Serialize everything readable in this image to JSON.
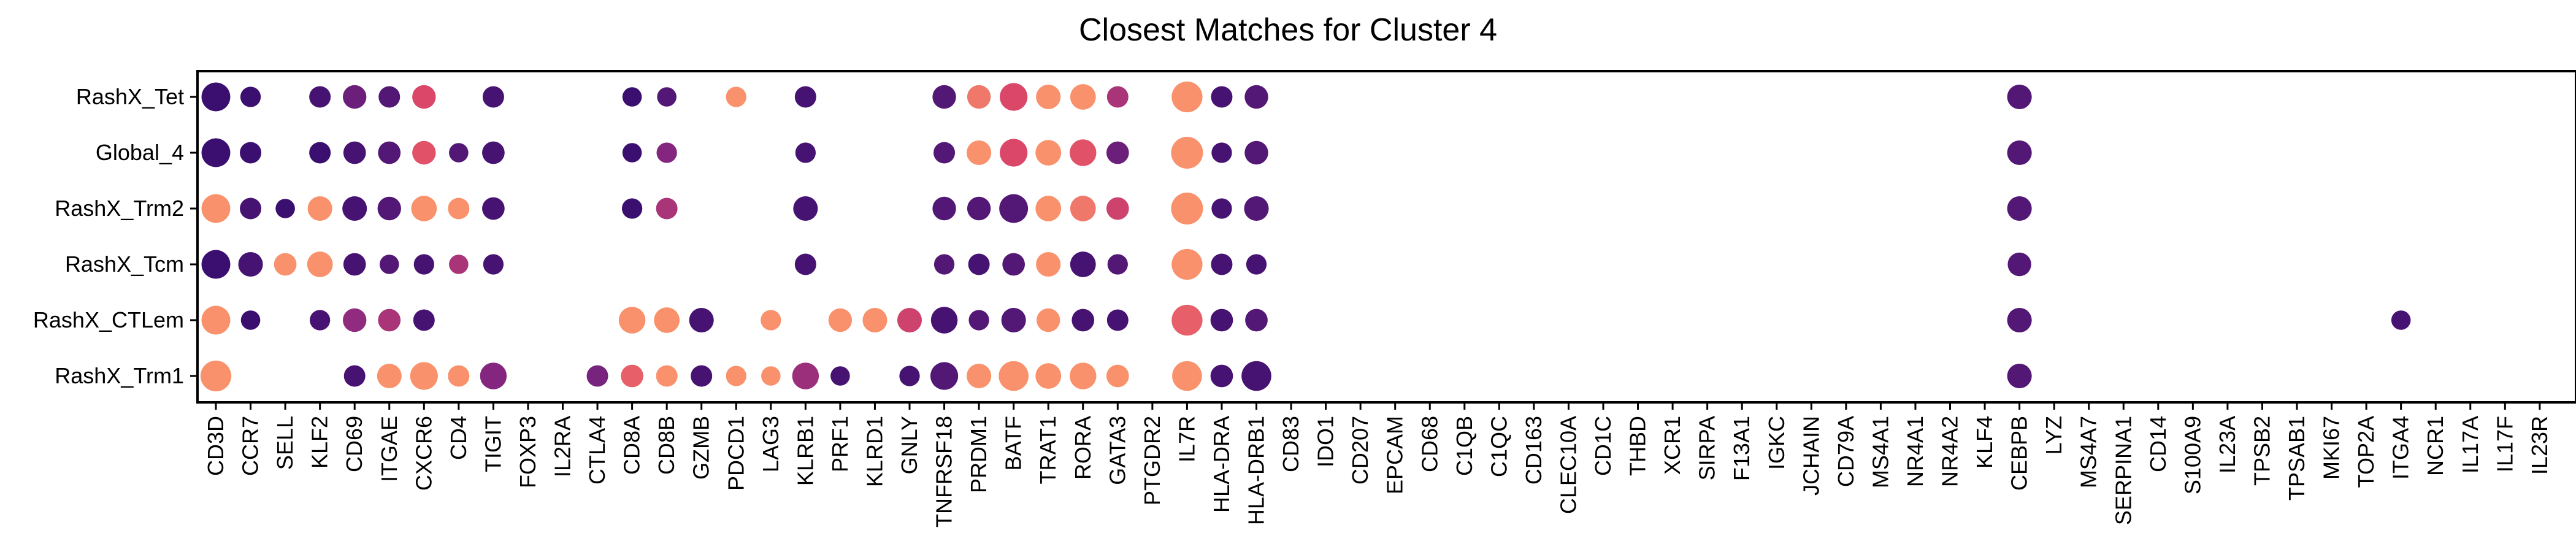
{
  "chart_data": {
    "type": "dot",
    "title": "Closest Matches for Cluster 4",
    "xlabel": "",
    "ylabel": "",
    "grid": false,
    "legend": "none",
    "color_scale": [
      "#3b0f70",
      "#8c2981",
      "#de4968",
      "#fe9f6d"
    ],
    "genes": [
      "CD3D",
      "CCR7",
      "SELL",
      "KLF2",
      "CD69",
      "ITGAE",
      "CXCR6",
      "CD4",
      "TIGIT",
      "FOXP3",
      "IL2RA",
      "CTLA4",
      "CD8A",
      "CD8B",
      "GZMB",
      "PDCD1",
      "LAG3",
      "KLRB1",
      "PRF1",
      "KLRD1",
      "GNLY",
      "TNFRSF18",
      "PRDM1",
      "BATF",
      "TRAT1",
      "RORA",
      "GATA3",
      "PTGDR2",
      "IL7R",
      "HLA-DRA",
      "HLA-DRB1",
      "CD83",
      "IDO1",
      "CD207",
      "EPCAM",
      "CD68",
      "C1QB",
      "C1QC",
      "CD163",
      "CLEC10A",
      "CD1C",
      "THBD",
      "XCR1",
      "SIRPA",
      "F13A1",
      "IGKC",
      "JCHAIN",
      "CD79A",
      "MS4A1",
      "NR4A1",
      "NR4A2",
      "KLF4",
      "CEBPB",
      "LYZ",
      "MS4A7",
      "SERPINA1",
      "CD14",
      "S100A9",
      "IL23A",
      "TPSB2",
      "TPSAB1",
      "MKI67",
      "TOP2A",
      "ITGA4",
      "NCR1",
      "IL17A",
      "IL17F",
      "IL23R"
    ],
    "groups": [
      "RashX_Tet",
      "Global_4",
      "RashX_Trm2",
      "RashX_Tcm",
      "RashX_CTLem",
      "RashX_Trm1"
    ],
    "points": [
      {
        "group": "RashX_Tet",
        "gene": "CD3D",
        "size": 0.85,
        "color": 0.0
      },
      {
        "group": "RashX_Tet",
        "gene": "CCR7",
        "size": 0.45,
        "color": 0.0
      },
      {
        "group": "RashX_Tet",
        "gene": "KLF2",
        "size": 0.5,
        "color": 0.05
      },
      {
        "group": "RashX_Tet",
        "gene": "CD69",
        "size": 0.6,
        "color": 0.2
      },
      {
        "group": "RashX_Tet",
        "gene": "ITGAE",
        "size": 0.5,
        "color": 0.1
      },
      {
        "group": "RashX_Tet",
        "gene": "CXCR6",
        "size": 0.6,
        "color": 0.65
      },
      {
        "group": "RashX_Tet",
        "gene": "TIGIT",
        "size": 0.5,
        "color": 0.05
      },
      {
        "group": "RashX_Tet",
        "gene": "CD8A",
        "size": 0.4,
        "color": 0.0
      },
      {
        "group": "RashX_Tet",
        "gene": "CD8B",
        "size": 0.4,
        "color": 0.1
      },
      {
        "group": "RashX_Tet",
        "gene": "PDCD1",
        "size": 0.45,
        "color": 0.95
      },
      {
        "group": "RashX_Tet",
        "gene": "KLRB1",
        "size": 0.5,
        "color": 0.05
      },
      {
        "group": "RashX_Tet",
        "gene": "TNFRSF18",
        "size": 0.6,
        "color": 0.1
      },
      {
        "group": "RashX_Tet",
        "gene": "PRDM1",
        "size": 0.6,
        "color": 0.85
      },
      {
        "group": "RashX_Tet",
        "gene": "BATF",
        "size": 0.8,
        "color": 0.65
      },
      {
        "group": "RashX_Tet",
        "gene": "TRAT1",
        "size": 0.65,
        "color": 0.95
      },
      {
        "group": "RashX_Tet",
        "gene": "RORA",
        "size": 0.7,
        "color": 0.95
      },
      {
        "group": "RashX_Tet",
        "gene": "GATA3",
        "size": 0.5,
        "color": 0.45
      },
      {
        "group": "RashX_Tet",
        "gene": "IL7R",
        "size": 0.95,
        "color": 0.95
      },
      {
        "group": "RashX_Tet",
        "gene": "HLA-DRA",
        "size": 0.5,
        "color": 0.05
      },
      {
        "group": "RashX_Tet",
        "gene": "HLA-DRB1",
        "size": 0.6,
        "color": 0.1
      },
      {
        "group": "RashX_Tet",
        "gene": "CEBPB",
        "size": 0.65,
        "color": 0.1
      },
      {
        "group": "Global_4",
        "gene": "CD3D",
        "size": 0.85,
        "color": 0.0
      },
      {
        "group": "Global_4",
        "gene": "CCR7",
        "size": 0.5,
        "color": 0.0
      },
      {
        "group": "Global_4",
        "gene": "KLF2",
        "size": 0.5,
        "color": 0.0
      },
      {
        "group": "Global_4",
        "gene": "CD69",
        "size": 0.55,
        "color": 0.05
      },
      {
        "group": "Global_4",
        "gene": "ITGAE",
        "size": 0.55,
        "color": 0.1
      },
      {
        "group": "Global_4",
        "gene": "CXCR6",
        "size": 0.6,
        "color": 0.7
      },
      {
        "group": "Global_4",
        "gene": "CD4",
        "size": 0.4,
        "color": 0.1
      },
      {
        "group": "Global_4",
        "gene": "TIGIT",
        "size": 0.55,
        "color": 0.05
      },
      {
        "group": "Global_4",
        "gene": "CD8A",
        "size": 0.4,
        "color": 0.0
      },
      {
        "group": "Global_4",
        "gene": "CD8B",
        "size": 0.45,
        "color": 0.3
      },
      {
        "group": "Global_4",
        "gene": "KLRB1",
        "size": 0.45,
        "color": 0.05
      },
      {
        "group": "Global_4",
        "gene": "TNFRSF18",
        "size": 0.5,
        "color": 0.1
      },
      {
        "group": "Global_4",
        "gene": "PRDM1",
        "size": 0.65,
        "color": 0.95
      },
      {
        "group": "Global_4",
        "gene": "BATF",
        "size": 0.8,
        "color": 0.65
      },
      {
        "group": "Global_4",
        "gene": "TRAT1",
        "size": 0.7,
        "color": 0.95
      },
      {
        "group": "Global_4",
        "gene": "RORA",
        "size": 0.75,
        "color": 0.7
      },
      {
        "group": "Global_4",
        "gene": "GATA3",
        "size": 0.55,
        "color": 0.2
      },
      {
        "group": "Global_4",
        "gene": "IL7R",
        "size": 1.0,
        "color": 0.95
      },
      {
        "group": "Global_4",
        "gene": "HLA-DRA",
        "size": 0.45,
        "color": 0.05
      },
      {
        "group": "Global_4",
        "gene": "HLA-DRB1",
        "size": 0.6,
        "color": 0.1
      },
      {
        "group": "Global_4",
        "gene": "CEBPB",
        "size": 0.65,
        "color": 0.1
      },
      {
        "group": "RashX_Trm2",
        "gene": "CD3D",
        "size": 0.85,
        "color": 0.95
      },
      {
        "group": "RashX_Trm2",
        "gene": "CCR7",
        "size": 0.5,
        "color": 0.05
      },
      {
        "group": "RashX_Trm2",
        "gene": "SELL",
        "size": 0.4,
        "color": 0.0
      },
      {
        "group": "RashX_Trm2",
        "gene": "KLF2",
        "size": 0.65,
        "color": 0.95
      },
      {
        "group": "RashX_Trm2",
        "gene": "CD69",
        "size": 0.65,
        "color": 0.05
      },
      {
        "group": "RashX_Trm2",
        "gene": "ITGAE",
        "size": 0.6,
        "color": 0.1
      },
      {
        "group": "RashX_Trm2",
        "gene": "CXCR6",
        "size": 0.7,
        "color": 0.95
      },
      {
        "group": "RashX_Trm2",
        "gene": "CD4",
        "size": 0.5,
        "color": 0.95
      },
      {
        "group": "RashX_Trm2",
        "gene": "TIGIT",
        "size": 0.55,
        "color": 0.05
      },
      {
        "group": "RashX_Trm2",
        "gene": "CD8A",
        "size": 0.45,
        "color": 0.0
      },
      {
        "group": "RashX_Trm2",
        "gene": "CD8B",
        "size": 0.5,
        "color": 0.45
      },
      {
        "group": "RashX_Trm2",
        "gene": "KLRB1",
        "size": 0.65,
        "color": 0.05
      },
      {
        "group": "RashX_Trm2",
        "gene": "TNFRSF18",
        "size": 0.6,
        "color": 0.1
      },
      {
        "group": "RashX_Trm2",
        "gene": "PRDM1",
        "size": 0.6,
        "color": 0.1
      },
      {
        "group": "RashX_Trm2",
        "gene": "BATF",
        "size": 0.85,
        "color": 0.1
      },
      {
        "group": "RashX_Trm2",
        "gene": "TRAT1",
        "size": 0.7,
        "color": 0.95
      },
      {
        "group": "RashX_Trm2",
        "gene": "RORA",
        "size": 0.7,
        "color": 0.85
      },
      {
        "group": "RashX_Trm2",
        "gene": "GATA3",
        "size": 0.55,
        "color": 0.6
      },
      {
        "group": "RashX_Trm2",
        "gene": "IL7R",
        "size": 1.0,
        "color": 0.95
      },
      {
        "group": "RashX_Trm2",
        "gene": "HLA-DRA",
        "size": 0.45,
        "color": 0.05
      },
      {
        "group": "RashX_Trm2",
        "gene": "HLA-DRB1",
        "size": 0.65,
        "color": 0.1
      },
      {
        "group": "RashX_Trm2",
        "gene": "CEBPB",
        "size": 0.65,
        "color": 0.1
      },
      {
        "group": "RashX_Tcm",
        "gene": "CD3D",
        "size": 0.85,
        "color": 0.0
      },
      {
        "group": "RashX_Tcm",
        "gene": "CCR7",
        "size": 0.65,
        "color": 0.05
      },
      {
        "group": "RashX_Tcm",
        "gene": "SELL",
        "size": 0.55,
        "color": 0.95
      },
      {
        "group": "RashX_Tcm",
        "gene": "KLF2",
        "size": 0.7,
        "color": 0.95
      },
      {
        "group": "RashX_Tcm",
        "gene": "CD69",
        "size": 0.55,
        "color": 0.05
      },
      {
        "group": "RashX_Tcm",
        "gene": "ITGAE",
        "size": 0.4,
        "color": 0.1
      },
      {
        "group": "RashX_Tcm",
        "gene": "CXCR6",
        "size": 0.45,
        "color": 0.05
      },
      {
        "group": "RashX_Tcm",
        "gene": "CD4",
        "size": 0.4,
        "color": 0.45
      },
      {
        "group": "RashX_Tcm",
        "gene": "TIGIT",
        "size": 0.45,
        "color": 0.05
      },
      {
        "group": "RashX_Tcm",
        "gene": "KLRB1",
        "size": 0.5,
        "color": 0.05
      },
      {
        "group": "RashX_Tcm",
        "gene": "TNFRSF18",
        "size": 0.45,
        "color": 0.1
      },
      {
        "group": "RashX_Tcm",
        "gene": "PRDM1",
        "size": 0.5,
        "color": 0.05
      },
      {
        "group": "RashX_Tcm",
        "gene": "BATF",
        "size": 0.55,
        "color": 0.1
      },
      {
        "group": "RashX_Tcm",
        "gene": "TRAT1",
        "size": 0.65,
        "color": 0.95
      },
      {
        "group": "RashX_Tcm",
        "gene": "RORA",
        "size": 0.7,
        "color": 0.05
      },
      {
        "group": "RashX_Tcm",
        "gene": "GATA3",
        "size": 0.45,
        "color": 0.1
      },
      {
        "group": "RashX_Tcm",
        "gene": "IL7R",
        "size": 0.95,
        "color": 0.95
      },
      {
        "group": "RashX_Tcm",
        "gene": "HLA-DRA",
        "size": 0.5,
        "color": 0.05
      },
      {
        "group": "RashX_Tcm",
        "gene": "HLA-DRB1",
        "size": 0.45,
        "color": 0.05
      },
      {
        "group": "RashX_Tcm",
        "gene": "CEBPB",
        "size": 0.6,
        "color": 0.1
      },
      {
        "group": "RashX_CTLem",
        "gene": "CD3D",
        "size": 0.85,
        "color": 0.95
      },
      {
        "group": "RashX_CTLem",
        "gene": "CCR7",
        "size": 0.4,
        "color": 0.0
      },
      {
        "group": "RashX_CTLem",
        "gene": "KLF2",
        "size": 0.45,
        "color": 0.05
      },
      {
        "group": "RashX_CTLem",
        "gene": "CD69",
        "size": 0.6,
        "color": 0.35
      },
      {
        "group": "RashX_CTLem",
        "gene": "ITGAE",
        "size": 0.55,
        "color": 0.45
      },
      {
        "group": "RashX_CTLem",
        "gene": "CXCR6",
        "size": 0.5,
        "color": 0.05
      },
      {
        "group": "RashX_CTLem",
        "gene": "CD8A",
        "size": 0.75,
        "color": 0.95
      },
      {
        "group": "RashX_CTLem",
        "gene": "CD8B",
        "size": 0.7,
        "color": 0.95
      },
      {
        "group": "RashX_CTLem",
        "gene": "GZMB",
        "size": 0.65,
        "color": 0.05
      },
      {
        "group": "RashX_CTLem",
        "gene": "LAG3",
        "size": 0.45,
        "color": 0.95
      },
      {
        "group": "RashX_CTLem",
        "gene": "PRF1",
        "size": 0.6,
        "color": 0.95
      },
      {
        "group": "RashX_CTLem",
        "gene": "KLRD1",
        "size": 0.65,
        "color": 0.95
      },
      {
        "group": "RashX_CTLem",
        "gene": "GNLY",
        "size": 0.65,
        "color": 0.6
      },
      {
        "group": "RashX_CTLem",
        "gene": "TNFRSF18",
        "size": 0.75,
        "color": 0.05
      },
      {
        "group": "RashX_CTLem",
        "gene": "PRDM1",
        "size": 0.45,
        "color": 0.1
      },
      {
        "group": "RashX_CTLem",
        "gene": "BATF",
        "size": 0.65,
        "color": 0.1
      },
      {
        "group": "RashX_CTLem",
        "gene": "TRAT1",
        "size": 0.6,
        "color": 0.95
      },
      {
        "group": "RashX_CTLem",
        "gene": "RORA",
        "size": 0.55,
        "color": 0.05
      },
      {
        "group": "RashX_CTLem",
        "gene": "GATA3",
        "size": 0.5,
        "color": 0.05
      },
      {
        "group": "RashX_CTLem",
        "gene": "IL7R",
        "size": 0.95,
        "color": 0.75
      },
      {
        "group": "RashX_CTLem",
        "gene": "HLA-DRA",
        "size": 0.55,
        "color": 0.05
      },
      {
        "group": "RashX_CTLem",
        "gene": "HLA-DRB1",
        "size": 0.55,
        "color": 0.1
      },
      {
        "group": "RashX_CTLem",
        "gene": "CEBPB",
        "size": 0.65,
        "color": 0.1
      },
      {
        "group": "RashX_CTLem",
        "gene": "ITGA4",
        "size": 0.4,
        "color": 0.05
      },
      {
        "group": "RashX_Trm1",
        "gene": "CD3D",
        "size": 0.95,
        "color": 0.95
      },
      {
        "group": "RashX_Trm1",
        "gene": "CD69",
        "size": 0.5,
        "color": 0.05
      },
      {
        "group": "RashX_Trm1",
        "gene": "ITGAE",
        "size": 0.65,
        "color": 0.95
      },
      {
        "group": "RashX_Trm1",
        "gene": "CXCR6",
        "size": 0.8,
        "color": 0.95
      },
      {
        "group": "RashX_Trm1",
        "gene": "CD4",
        "size": 0.5,
        "color": 0.95
      },
      {
        "group": "RashX_Trm1",
        "gene": "TIGIT",
        "size": 0.75,
        "color": 0.3
      },
      {
        "group": "RashX_Trm1",
        "gene": "CTLA4",
        "size": 0.5,
        "color": 0.25
      },
      {
        "group": "RashX_Trm1",
        "gene": "CD8A",
        "size": 0.55,
        "color": 0.75
      },
      {
        "group": "RashX_Trm1",
        "gene": "CD8B",
        "size": 0.5,
        "color": 0.95
      },
      {
        "group": "RashX_Trm1",
        "gene": "GZMB",
        "size": 0.5,
        "color": 0.05
      },
      {
        "group": "RashX_Trm1",
        "gene": "PDCD1",
        "size": 0.45,
        "color": 0.95
      },
      {
        "group": "RashX_Trm1",
        "gene": "LAG3",
        "size": 0.4,
        "color": 0.95
      },
      {
        "group": "RashX_Trm1",
        "gene": "KLRB1",
        "size": 0.75,
        "color": 0.4
      },
      {
        "group": "RashX_Trm1",
        "gene": "PRF1",
        "size": 0.4,
        "color": 0.05
      },
      {
        "group": "RashX_Trm1",
        "gene": "GNLY",
        "size": 0.45,
        "color": 0.05
      },
      {
        "group": "RashX_Trm1",
        "gene": "TNFRSF18",
        "size": 0.8,
        "color": 0.1
      },
      {
        "group": "RashX_Trm1",
        "gene": "PRDM1",
        "size": 0.65,
        "color": 0.95
      },
      {
        "group": "RashX_Trm1",
        "gene": "BATF",
        "size": 0.9,
        "color": 0.95
      },
      {
        "group": "RashX_Trm1",
        "gene": "TRAT1",
        "size": 0.7,
        "color": 0.95
      },
      {
        "group": "RashX_Trm1",
        "gene": "RORA",
        "size": 0.75,
        "color": 0.95
      },
      {
        "group": "RashX_Trm1",
        "gene": "GATA3",
        "size": 0.55,
        "color": 0.95
      },
      {
        "group": "RashX_Trm1",
        "gene": "IL7R",
        "size": 0.9,
        "color": 0.95
      },
      {
        "group": "RashX_Trm1",
        "gene": "HLA-DRA",
        "size": 0.55,
        "color": 0.05
      },
      {
        "group": "RashX_Trm1",
        "gene": "HLA-DRB1",
        "size": 0.9,
        "color": 0.05
      },
      {
        "group": "RashX_Trm1",
        "gene": "CEBPB",
        "size": 0.65,
        "color": 0.1
      }
    ]
  }
}
